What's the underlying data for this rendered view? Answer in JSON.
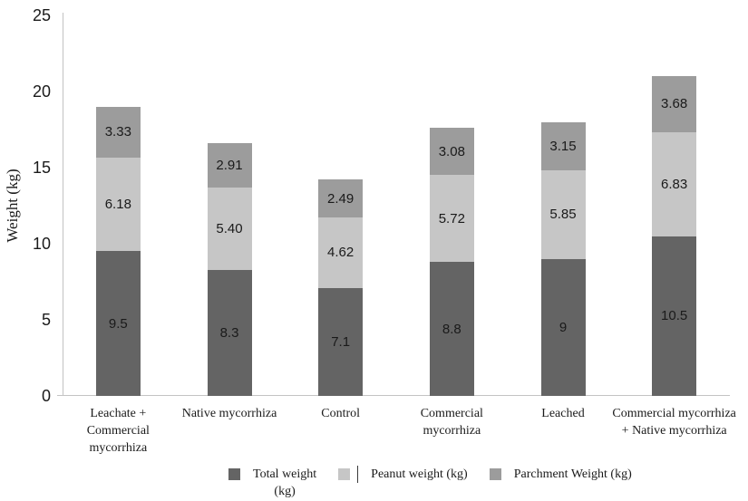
{
  "chart_data": {
    "type": "bar",
    "stacked": true,
    "title": "",
    "xlabel": "",
    "ylabel": "Weight (kg)",
    "ylim": [
      0,
      25
    ],
    "yticks": [
      "0",
      "5",
      "10",
      "15",
      "20",
      "25"
    ],
    "grid": false,
    "legend_position": "bottom",
    "categories": [
      "Leachate +\nCommercial\nmycorrhiza",
      "Native mycorrhiza",
      "Control",
      "Commercial\nmycorrhiza",
      "Leached",
      "Commercial mycorrhiza\n+ Native mycorrhiza"
    ],
    "series": [
      {
        "name": "Total weight (kg)",
        "color": "#646464",
        "values": [
          9.5,
          8.3,
          7.1,
          8.8,
          9,
          10.5
        ],
        "value_labels": [
          "9.5",
          "8.3",
          "7.1",
          "8.8",
          "9",
          "10.5"
        ]
      },
      {
        "name": "Peanut weight (kg)",
        "color": "#c6c6c6",
        "values": [
          6.18,
          5.4,
          4.62,
          5.72,
          5.85,
          6.83
        ],
        "value_labels": [
          "6.18",
          "5.40",
          "4.62",
          "5.72",
          "5.85",
          "6.83"
        ]
      },
      {
        "name": "Parchment Weight (kg)",
        "color": "#9c9c9c",
        "values": [
          3.33,
          2.91,
          2.49,
          3.08,
          3.15,
          3.68
        ],
        "value_labels": [
          "3.33",
          "2.91",
          "2.49",
          "3.08",
          "3.15",
          "3.68"
        ]
      }
    ],
    "legend_items": [
      {
        "label": "Total weight\n(kg)",
        "series_index": 0
      },
      {
        "label": "Peanut weight (kg)",
        "series_index": 1,
        "caret_artifact": true
      },
      {
        "label": "Parchment Weight (kg)",
        "series_index": 2
      }
    ]
  },
  "colors": {
    "axis_line": "#c3c3c3",
    "text": "#1a1a1a",
    "background": "#ffffff"
  }
}
